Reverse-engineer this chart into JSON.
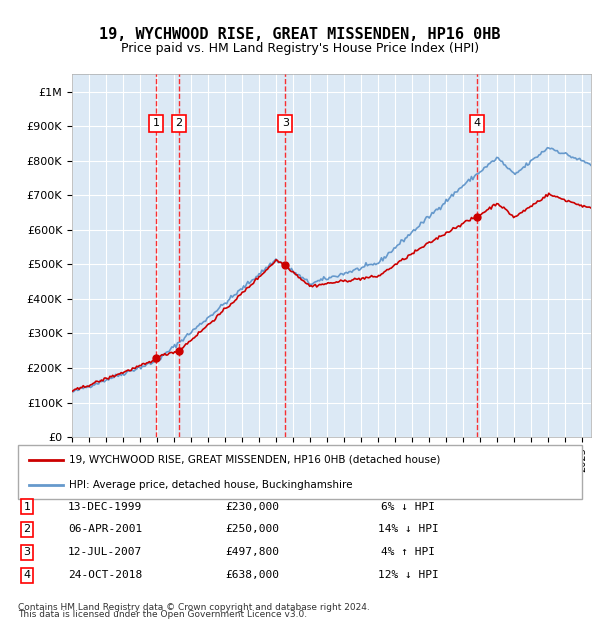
{
  "title": "19, WYCHWOOD RISE, GREAT MISSENDEN, HP16 0HB",
  "subtitle": "Price paid vs. HM Land Registry's House Price Index (HPI)",
  "background_color": "#ffffff",
  "plot_background": "#dce9f5",
  "grid_color": "#ffffff",
  "hpi_line_color": "#6699cc",
  "price_line_color": "#cc0000",
  "ylim": [
    0,
    1050000
  ],
  "yticks": [
    0,
    100000,
    200000,
    300000,
    400000,
    500000,
    600000,
    700000,
    800000,
    900000,
    1000000
  ],
  "ytick_labels": [
    "£0",
    "£100K",
    "£200K",
    "£300K",
    "£400K",
    "£500K",
    "£600K",
    "£700K",
    "£800K",
    "£900K",
    "£1M"
  ],
  "sales": [
    {
      "num": 1,
      "date_num": 1999.95,
      "price": 230000,
      "label": "13-DEC-1999",
      "pct": "6%",
      "dir": "↓"
    },
    {
      "num": 2,
      "date_num": 2001.27,
      "price": 250000,
      "label": "06-APR-2001",
      "pct": "14%",
      "dir": "↓"
    },
    {
      "num": 3,
      "date_num": 2007.53,
      "price": 497800,
      "label": "12-JUL-2007",
      "pct": "4%",
      "dir": "↑"
    },
    {
      "num": 4,
      "date_num": 2018.81,
      "price": 638000,
      "label": "24-OCT-2018",
      "pct": "12%",
      "dir": "↓"
    }
  ],
  "legend_label_red": "19, WYCHWOOD RISE, GREAT MISSENDEN, HP16 0HB (detached house)",
  "legend_label_blue": "HPI: Average price, detached house, Buckinghamshire",
  "footer1": "Contains HM Land Registry data © Crown copyright and database right 2024.",
  "footer2": "This data is licensed under the Open Government Licence v3.0.",
  "xmin": 1995.0,
  "xmax": 2025.5
}
